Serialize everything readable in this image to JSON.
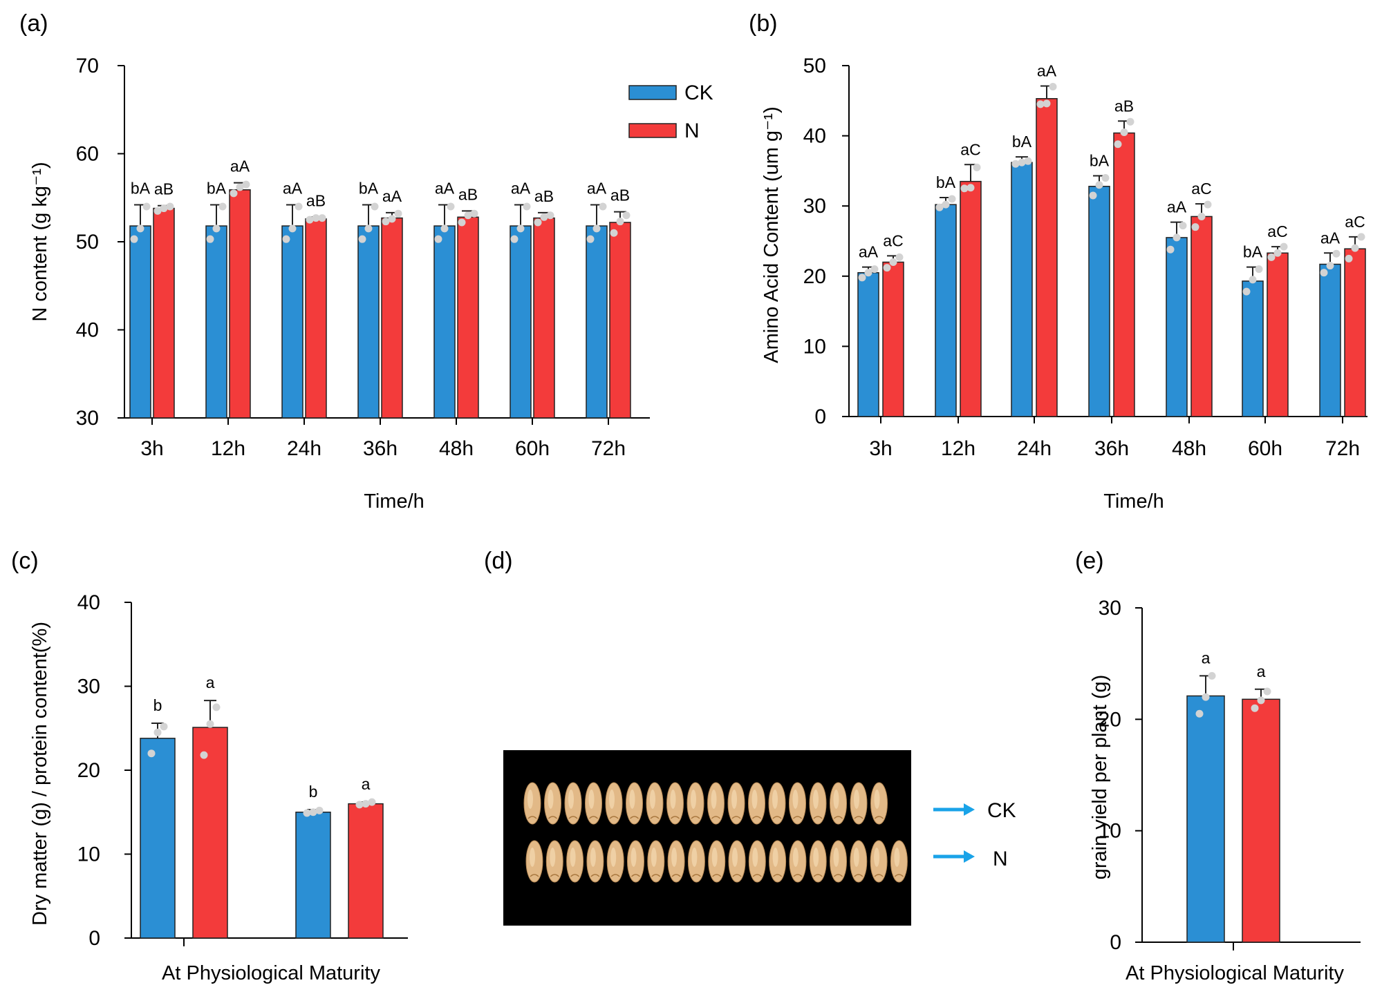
{
  "colors": {
    "CK": "#2b8fd4",
    "N": "#f33b3b",
    "dot": "#d3d3d3",
    "arrow": "#1aa3e8",
    "photo_bg": "#000000",
    "grain": "#e2b987"
  },
  "legend": {
    "ck": "CK",
    "n": "N"
  },
  "panels": {
    "a": {
      "label": "(a)"
    },
    "b": {
      "label": "(b)"
    },
    "c": {
      "label": "(c)"
    },
    "d": {
      "label": "(d)",
      "arrow_labels": [
        "CK",
        "N"
      ]
    },
    "e": {
      "label": "(e)"
    }
  },
  "chart_data": [
    {
      "id": "a",
      "type": "bar",
      "title": "",
      "xlabel": "Time/h",
      "ylabel": "N content (g kg⁻¹)",
      "ylim": [
        30,
        70
      ],
      "yticks": [
        30,
        40,
        50,
        60,
        70
      ],
      "categories": [
        "3h",
        "12h",
        "24h",
        "36h",
        "48h",
        "60h",
        "72h"
      ],
      "series": [
        {
          "name": "CK",
          "values": [
            51.8,
            51.8,
            51.8,
            51.8,
            51.8,
            51.8,
            51.8
          ],
          "errors": [
            2.4,
            2.4,
            2.4,
            2.4,
            2.4,
            2.4,
            2.4
          ],
          "labels": [
            "bA",
            "bA",
            "aA",
            "bA",
            "aA",
            "aA",
            "aA"
          ],
          "points": [
            [
              50.3,
              51.5,
              54.0
            ],
            [
              50.3,
              51.5,
              54.0
            ],
            [
              50.3,
              51.5,
              54.0
            ],
            [
              50.3,
              51.5,
              54.0
            ],
            [
              50.3,
              51.5,
              54.0
            ],
            [
              50.3,
              51.5,
              54.0
            ],
            [
              50.3,
              51.5,
              54.0
            ]
          ]
        },
        {
          "name": "N",
          "values": [
            53.8,
            55.9,
            52.6,
            52.7,
            52.8,
            52.7,
            52.2
          ],
          "errors": [
            0.3,
            0.8,
            0.2,
            0.6,
            0.7,
            0.6,
            1.2
          ],
          "labels": [
            "aB",
            "aA",
            "aB",
            "aA",
            "aB",
            "aB",
            "aB"
          ],
          "points": [
            [
              53.5,
              53.8,
              54.0
            ],
            [
              55.5,
              56.2,
              56.5
            ],
            [
              52.5,
              52.7,
              52.7
            ],
            [
              52.3,
              52.6,
              53.2
            ],
            [
              52.2,
              53.0,
              53.2
            ],
            [
              52.2,
              52.8,
              53.0
            ],
            [
              51.0,
              52.3,
              53.0
            ]
          ]
        }
      ]
    },
    {
      "id": "b",
      "type": "bar",
      "title": "",
      "xlabel": "Time/h",
      "ylabel": "Amino Acid Content (um g⁻¹)",
      "ylim": [
        0,
        50
      ],
      "yticks": [
        0,
        10,
        20,
        30,
        40,
        50
      ],
      "categories": [
        "3h",
        "12h",
        "24h",
        "36h",
        "48h",
        "60h",
        "72h"
      ],
      "series": [
        {
          "name": "CK",
          "values": [
            20.5,
            30.2,
            36.2,
            32.8,
            25.5,
            19.3,
            21.7
          ],
          "errors": [
            0.8,
            1.0,
            0.8,
            1.5,
            2.2,
            2.0,
            1.6
          ],
          "labels": [
            "aA",
            "bA",
            "bA",
            "bA",
            "aA",
            "bA",
            "aA"
          ],
          "points": [
            [
              19.8,
              20.5,
              21.0
            ],
            [
              29.8,
              30.2,
              31.0
            ],
            [
              36.0,
              36.2,
              36.4
            ],
            [
              31.5,
              33.0,
              34.0
            ],
            [
              23.8,
              25.5,
              27.2
            ],
            [
              17.8,
              19.5,
              21.0
            ],
            [
              20.5,
              21.5,
              23.2
            ]
          ]
        },
        {
          "name": "N",
          "values": [
            22.0,
            33.5,
            45.3,
            40.4,
            28.5,
            23.3,
            23.9
          ],
          "errors": [
            0.9,
            2.4,
            1.8,
            1.7,
            1.8,
            0.9,
            1.7
          ],
          "labels": [
            "aC",
            "aC",
            "aA",
            "aB",
            "aC",
            "aC",
            "aC"
          ],
          "points": [
            [
              21.2,
              22.0,
              22.7
            ],
            [
              32.5,
              32.6,
              35.5
            ],
            [
              44.5,
              44.6,
              47.0
            ],
            [
              38.8,
              40.5,
              42.0
            ],
            [
              27.0,
              28.5,
              30.2
            ],
            [
              22.7,
              23.3,
              24.2
            ],
            [
              22.5,
              24.0,
              25.6
            ]
          ]
        }
      ]
    },
    {
      "id": "c",
      "type": "bar",
      "title": "",
      "xlabel": "At Physiological Maturity",
      "ylabel": "Dry matter (g) / protein content(%)",
      "ylim": [
        0,
        40
      ],
      "yticks": [
        0,
        10,
        20,
        30,
        40
      ],
      "categories": [
        "",
        ""
      ],
      "series": [
        {
          "name": "CK",
          "values": [
            23.8,
            15.0
          ],
          "errors": [
            1.8,
            0.3
          ],
          "labels": [
            "b",
            "b"
          ],
          "points": [
            [
              22.0,
              24.5,
              25.2
            ],
            [
              14.9,
              15.0,
              15.2
            ]
          ]
        },
        {
          "name": "N",
          "values": [
            25.1,
            16.0
          ],
          "errors": [
            3.2,
            0.2
          ],
          "labels": [
            "a",
            "a"
          ],
          "points": [
            [
              21.8,
              25.5,
              27.5
            ],
            [
              15.9,
              16.0,
              16.2
            ]
          ]
        }
      ]
    },
    {
      "id": "e",
      "type": "bar",
      "title": "",
      "xlabel": "At Physiological Maturity",
      "ylabel": "grain yield per plant (g)",
      "ylim": [
        0,
        30
      ],
      "yticks": [
        0,
        10,
        20,
        30
      ],
      "categories": [
        ""
      ],
      "series": [
        {
          "name": "CK",
          "values": [
            22.1
          ],
          "errors": [
            1.8
          ],
          "labels": [
            "a"
          ],
          "points": [
            [
              20.5,
              22.0,
              23.9
            ]
          ]
        },
        {
          "name": "N",
          "values": [
            21.8
          ],
          "errors": [
            0.9
          ],
          "labels": [
            "a"
          ],
          "points": [
            [
              21.0,
              21.7,
              22.5
            ]
          ]
        }
      ]
    }
  ]
}
